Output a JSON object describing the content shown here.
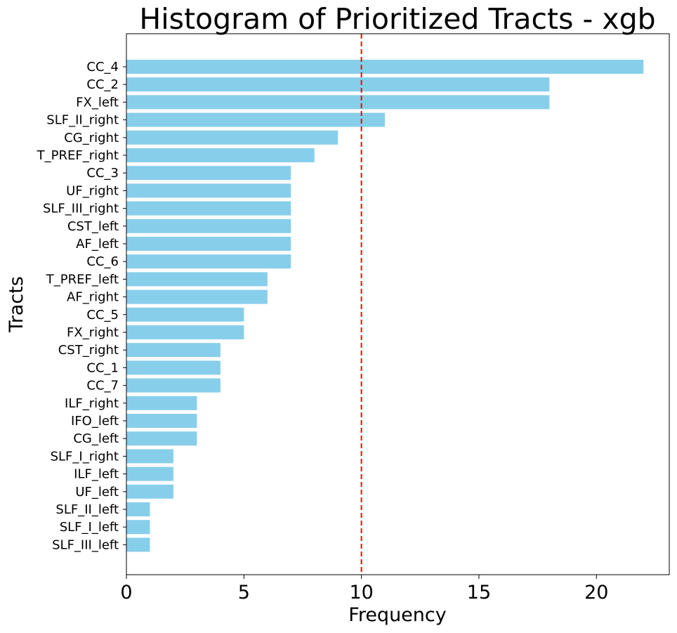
{
  "chart_data": {
    "type": "bar",
    "orientation": "horizontal",
    "title": "Histogram of Prioritized Tracts - xgb",
    "xlabel": "Frequency",
    "ylabel": "Tracts",
    "xlim": [
      0,
      23.1
    ],
    "xticks": [
      0,
      5,
      10,
      15,
      20
    ],
    "grid": false,
    "bar_color": "#87ceeb",
    "reference_line": {
      "x": 10,
      "color": "#ff0000",
      "style": "dashed"
    },
    "categories": [
      "CC_4",
      "CC_2",
      "FX_left",
      "SLF_II_right",
      "CG_right",
      "T_PREF_right",
      "CC_3",
      "UF_right",
      "SLF_III_right",
      "CST_left",
      "AF_left",
      "CC_6",
      "T_PREF_left",
      "AF_right",
      "CC_5",
      "FX_right",
      "CST_right",
      "CC_1",
      "CC_7",
      "ILF_right",
      "IFO_left",
      "CG_left",
      "SLF_I_right",
      "ILF_left",
      "UF_left",
      "SLF_II_left",
      "SLF_I_left",
      "SLF_III_left"
    ],
    "values": [
      22,
      18,
      18,
      11,
      9,
      8,
      7,
      7,
      7,
      7,
      7,
      7,
      6,
      6,
      5,
      5,
      4,
      4,
      4,
      3,
      3,
      3,
      2,
      2,
      2,
      1,
      1,
      1
    ]
  }
}
